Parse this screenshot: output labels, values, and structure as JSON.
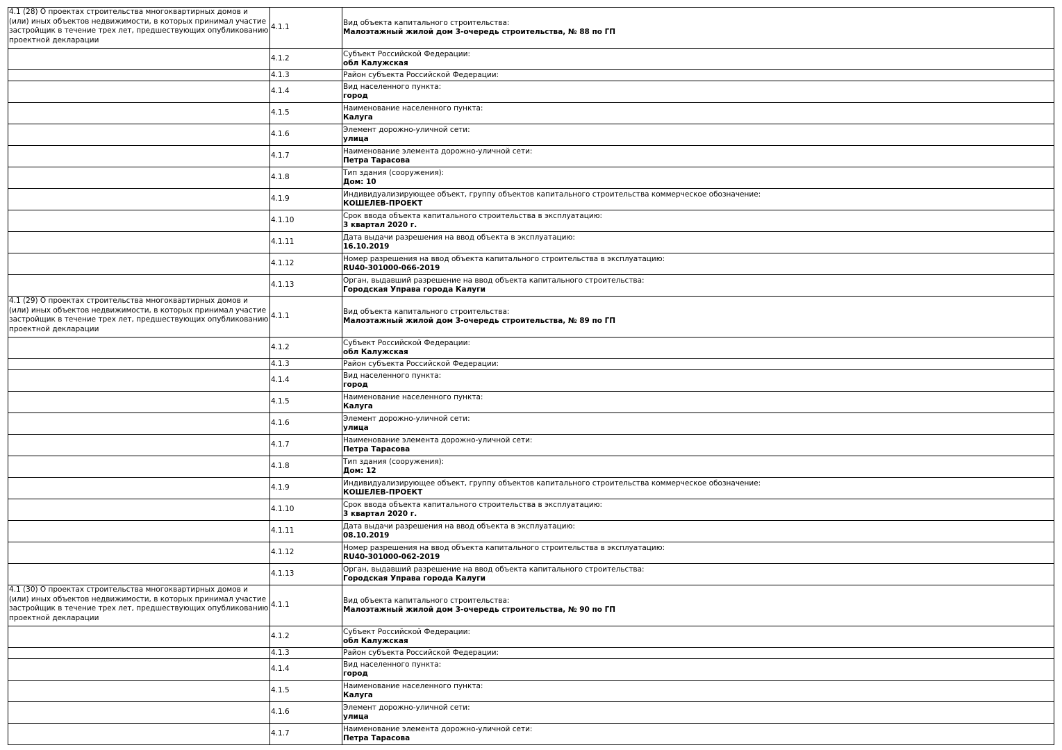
{
  "blocks": [
    {
      "title": "4.1 (28) О проектах строительства многоквартирных домов и (или) иных объектов недвижимости, в которых принимал участие застройщик в течение трех лет, предшествующих опубликованию проектной декларации",
      "rows": [
        {
          "num": "4.1.1",
          "label": "Вид объекта капитального строительства:",
          "value": "Малоэтажный жилой дом 3-очередь строительства, № 88 по ГП"
        },
        {
          "num": "4.1.2",
          "label": "Субъект Российской Федерации:",
          "value": "обл Калужская"
        },
        {
          "num": "4.1.3",
          "label": "Район субъекта Российской Федерации:",
          "value": ""
        },
        {
          "num": "4.1.4",
          "label": "Вид населенного пункта:",
          "value": "город"
        },
        {
          "num": "4.1.5",
          "label": "Наименование населенного пункта:",
          "value": "Калуга"
        },
        {
          "num": "4.1.6",
          "label": "Элемент дорожно-уличной сети:",
          "value": "улица"
        },
        {
          "num": "4.1.7",
          "label": "Наименование элемента дорожно-уличной сети:",
          "value": "Петра Тарасова"
        },
        {
          "num": "4.1.8",
          "label": "Тип здания (сооружения):",
          "value": "Дом: 10"
        },
        {
          "num": "4.1.9",
          "label": "Индивидуализирующее объект, группу объектов капитального строительства коммерческое обозначение:",
          "value": "КОШЕЛЕВ-ПРОЕКТ"
        },
        {
          "num": "4.1.10",
          "label": "Срок ввода объекта капитального строительства в эксплуатацию:",
          "value": "3 квартал 2020 г."
        },
        {
          "num": "4.1.11",
          "label": "Дата выдачи разрешения на ввод объекта в эксплуатацию:",
          "value": "16.10.2019"
        },
        {
          "num": "4.1.12",
          "label": "Номер разрешения на ввод объекта капитального строительства в эксплуатацию:",
          "value": "RU40-301000-066-2019"
        },
        {
          "num": "4.1.13",
          "label": "Орган, выдавший разрешение на ввод объекта капитального строительства:",
          "value": "Городская Управа города Калуги"
        }
      ]
    },
    {
      "title": "4.1 (29) О проектах строительства многоквартирных домов и (или) иных объектов недвижимости, в которых принимал участие застройщик в течение трех лет, предшествующих опубликованию проектной декларации",
      "rows": [
        {
          "num": "4.1.1",
          "label": "Вид объекта капитального строительства:",
          "value": "Малоэтажный жилой дом 3-очередь строительства, № 89 по ГП"
        },
        {
          "num": "4.1.2",
          "label": "Субъект Российской Федерации:",
          "value": "обл Калужская"
        },
        {
          "num": "4.1.3",
          "label": "Район субъекта Российской Федерации:",
          "value": ""
        },
        {
          "num": "4.1.4",
          "label": "Вид населенного пункта:",
          "value": "город"
        },
        {
          "num": "4.1.5",
          "label": "Наименование населенного пункта:",
          "value": "Калуга"
        },
        {
          "num": "4.1.6",
          "label": "Элемент дорожно-уличной сети:",
          "value": "улица"
        },
        {
          "num": "4.1.7",
          "label": "Наименование элемента дорожно-уличной сети:",
          "value": "Петра Тарасова"
        },
        {
          "num": "4.1.8",
          "label": "Тип здания (сооружения):",
          "value": "Дом: 12"
        },
        {
          "num": "4.1.9",
          "label": "Индивидуализирующее объект, группу объектов капитального строительства коммерческое обозначение:",
          "value": "КОШЕЛЕВ-ПРОЕКТ"
        },
        {
          "num": "4.1.10",
          "label": "Срок ввода объекта капитального строительства в эксплуатацию:",
          "value": "3 квартал 2020 г."
        },
        {
          "num": "4.1.11",
          "label": "Дата выдачи разрешения на ввод объекта в эксплуатацию:",
          "value": "08.10.2019"
        },
        {
          "num": "4.1.12",
          "label": "Номер разрешения на ввод объекта капитального строительства в эксплуатацию:",
          "value": "RU40-301000-062-2019"
        },
        {
          "num": "4.1.13",
          "label": "Орган, выдавший разрешение на ввод объекта капитального строительства:",
          "value": "Городская Управа города Калуги"
        }
      ]
    },
    {
      "title": "4.1 (30) О проектах строительства многоквартирных домов и (или) иных объектов недвижимости, в которых принимал участие застройщик в течение трех лет, предшествующих опубликованию проектной декларации",
      "rows": [
        {
          "num": "4.1.1",
          "label": "Вид объекта капитального строительства:",
          "value": "Малоэтажный жилой дом 3-очередь строительства, № 90 по ГП"
        },
        {
          "num": "4.1.2",
          "label": "Субъект Российской Федерации:",
          "value": "обл Калужская"
        },
        {
          "num": "4.1.3",
          "label": "Район субъекта Российской Федерации:",
          "value": ""
        },
        {
          "num": "4.1.4",
          "label": "Вид населенного пункта:",
          "value": "город"
        },
        {
          "num": "4.1.5",
          "label": "Наименование населенного пункта:",
          "value": "Калуга"
        },
        {
          "num": "4.1.6",
          "label": "Элемент дорожно-уличной сети:",
          "value": "улица"
        },
        {
          "num": "4.1.7",
          "label": "Наименование элемента дорожно-уличной сети:",
          "value": "Петра Тарасова"
        }
      ]
    }
  ]
}
